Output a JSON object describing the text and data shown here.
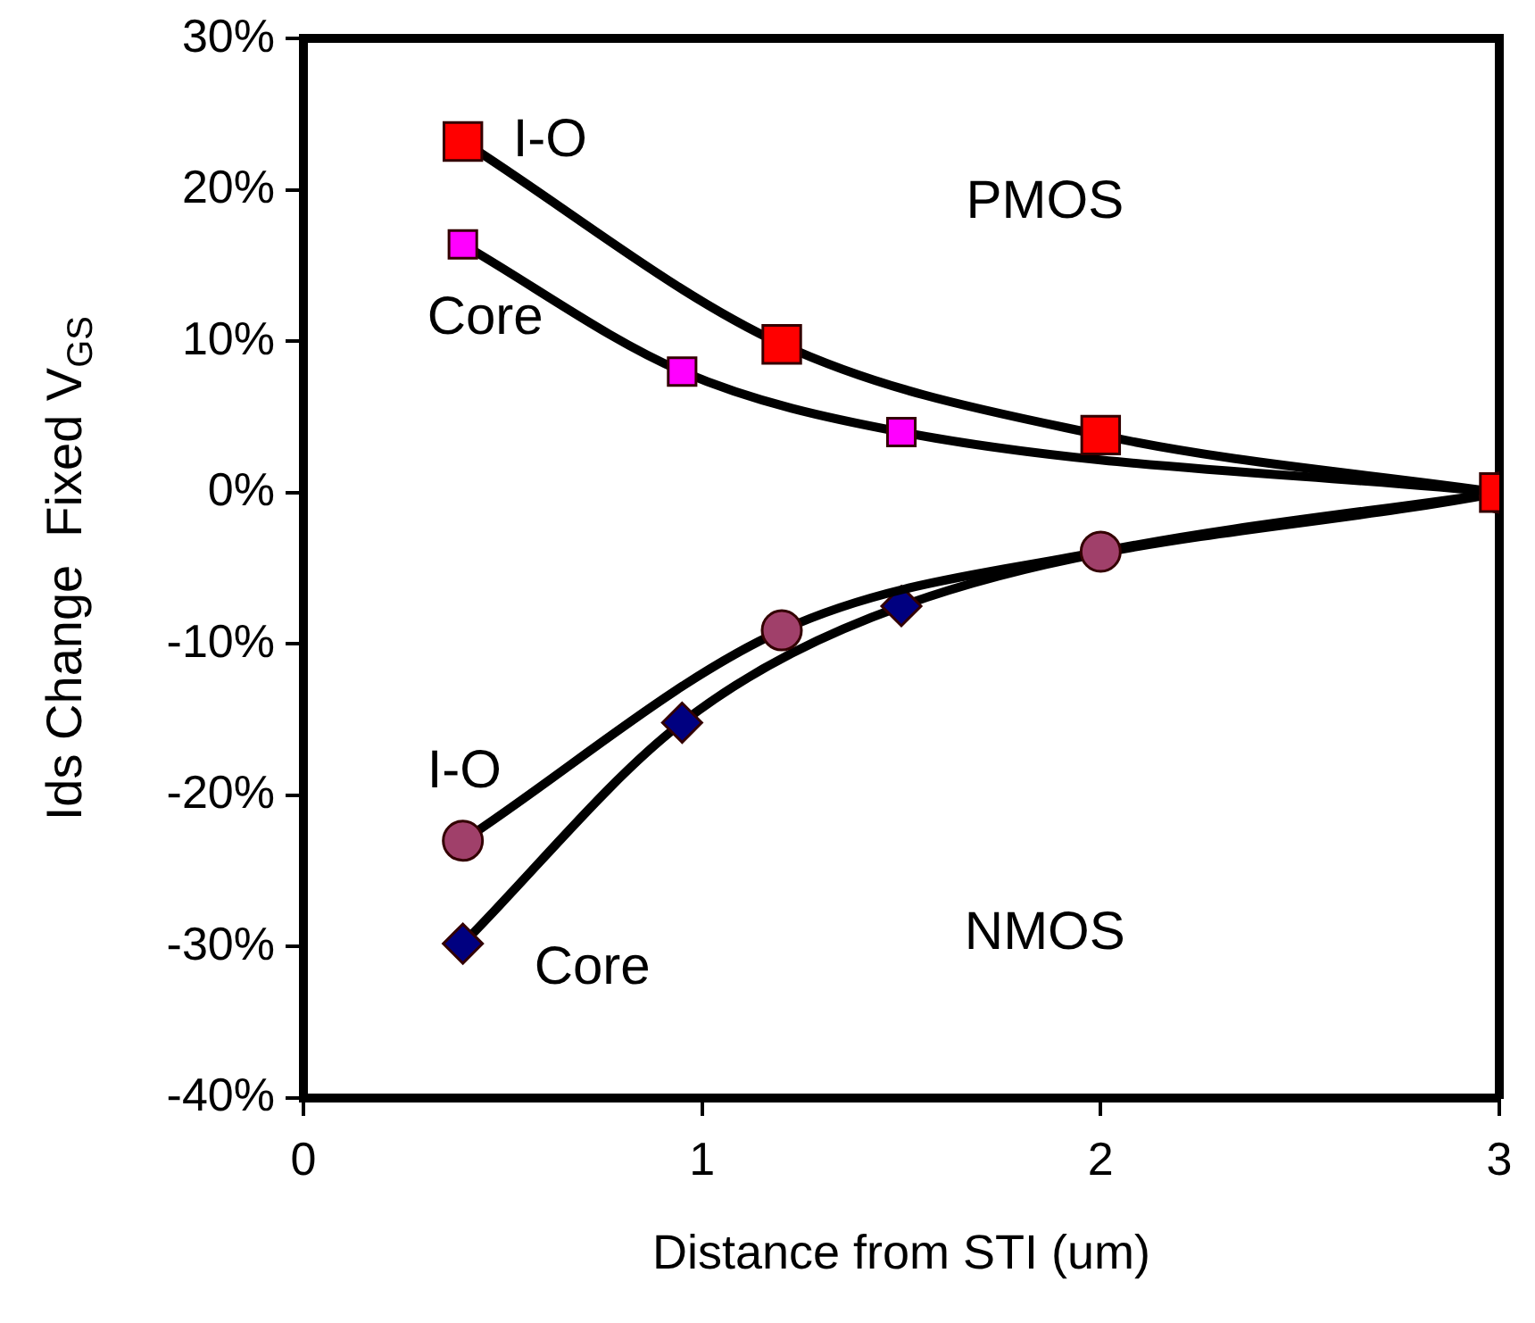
{
  "chart_data": {
    "type": "line",
    "xlabel": "Distance from STI (um)",
    "ylabel": "Ids Change  Fixed V$_{GS}$",
    "xlim": [
      0,
      3
    ],
    "xticks": [
      0,
      1,
      2,
      3
    ],
    "ylim": [
      -40,
      30
    ],
    "yticks": [
      {
        "value": -40,
        "label": "-40%"
      },
      {
        "value": -30,
        "label": "-30%"
      },
      {
        "value": -20,
        "label": "-20%"
      },
      {
        "value": -10,
        "label": "-10%"
      },
      {
        "value": 0,
        "label": "0%"
      },
      {
        "value": 10,
        "label": "10%"
      },
      {
        "value": 20,
        "label": "20%"
      },
      {
        "value": 30,
        "label": "30%"
      }
    ],
    "grid": false,
    "legend": "left",
    "line_style": "solid",
    "annotations": [
      "PMOS",
      "NMOS"
    ],
    "series": [
      {
        "name": "I-O",
        "color": "#ff0000",
        "marker": "square",
        "x": [
          0.4,
          1.2,
          2,
          3
        ],
        "values": [
          23.2,
          9.8,
          3.8,
          0
        ]
      },
      {
        "name": "Core",
        "color": "#ff00ff",
        "marker": "square",
        "x": [
          0.4,
          0.95,
          1.5,
          3
        ],
        "values": [
          16.4,
          8,
          4,
          0
        ]
      },
      {
        "name": "I-O",
        "color": "#a0406a",
        "marker": "circle",
        "x": [
          0.4,
          1.2,
          2,
          3
        ],
        "values": [
          -23,
          -9.1,
          -3.9,
          0
        ]
      },
      {
        "name": "Core",
        "color": "#000080",
        "marker": "diamond",
        "x": [
          0.4,
          0.95,
          1.5,
          3
        ],
        "values": [
          -29.8,
          -15.2,
          -7.5,
          0
        ]
      }
    ]
  }
}
